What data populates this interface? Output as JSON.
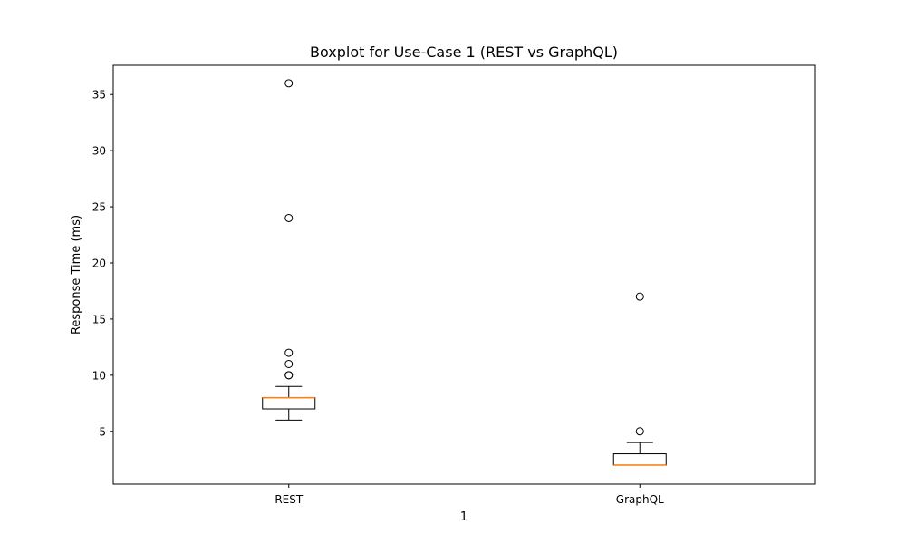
{
  "chart_data": {
    "type": "boxplot",
    "title": "Boxplot for Use-Case 1 (REST vs GraphQL)",
    "xlabel": "1",
    "ylabel": "Response Time (ms)",
    "categories": [
      "REST",
      "GraphQL"
    ],
    "ylim": [
      0.3,
      37.6
    ],
    "yticks": [
      5,
      10,
      15,
      20,
      25,
      30,
      35
    ],
    "grid": false,
    "legend": "none",
    "series": [
      {
        "category": "REST",
        "whisker_low": 6,
        "q1": 7,
        "median": 8,
        "q3": 8,
        "whisker_high": 9,
        "outliers": [
          10,
          10,
          11,
          12,
          24,
          36
        ]
      },
      {
        "category": "GraphQL",
        "whisker_low": 2,
        "q1": 2,
        "median": 2,
        "q3": 3,
        "whisker_high": 4,
        "outliers": [
          5,
          17
        ]
      }
    ],
    "colors": {
      "box": "#000000",
      "median": "#ff7f0e",
      "outlier": "#000000"
    }
  }
}
